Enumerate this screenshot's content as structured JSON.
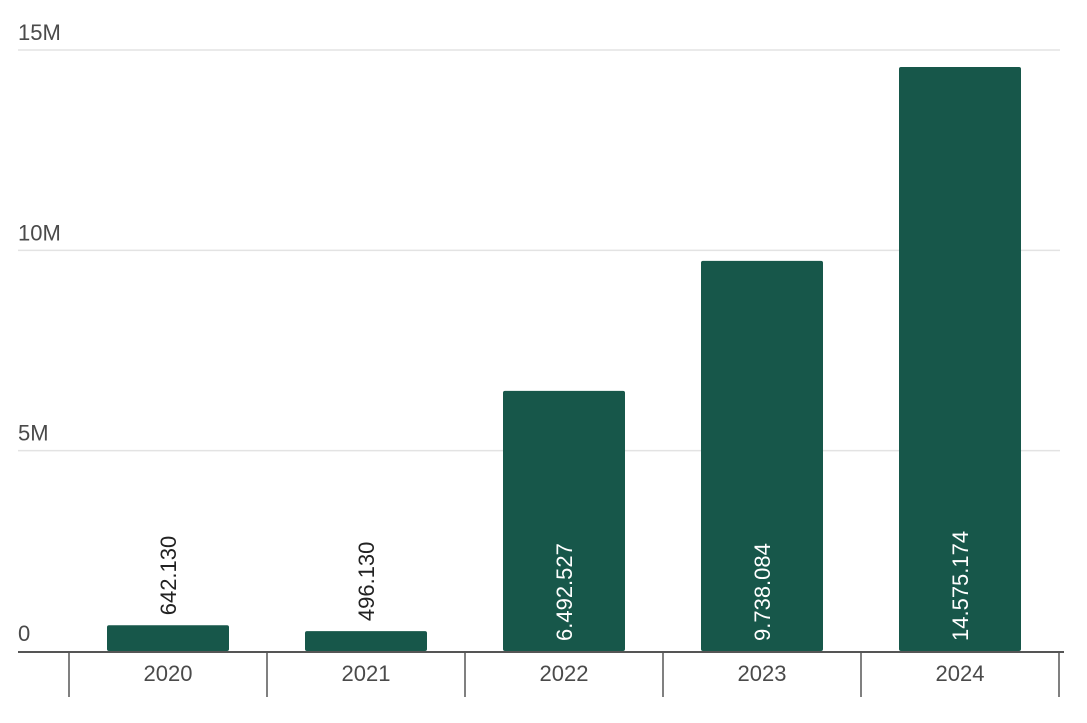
{
  "chart_data": {
    "type": "bar",
    "categories": [
      "2020",
      "2021",
      "2022",
      "2023",
      "2024"
    ],
    "values": [
      642130,
      496130,
      6492527,
      9738084,
      14575174
    ],
    "data_labels": [
      "642.130",
      "496.130",
      "6.492.527",
      "9.738.084",
      "14.575.174"
    ],
    "ylim": [
      0,
      15000000
    ],
    "y_ticks": [
      {
        "value": 0,
        "label": "0"
      },
      {
        "value": 5000000,
        "label": "5M"
      },
      {
        "value": 10000000,
        "label": "10M"
      },
      {
        "value": 15000000,
        "label": "15M"
      }
    ],
    "title": "",
    "xlabel": "",
    "ylabel": "",
    "grid": true,
    "legend": "none",
    "bar_color": "#17574a",
    "label_inside_color": "#ffffff",
    "label_outside_color": "#222222"
  }
}
